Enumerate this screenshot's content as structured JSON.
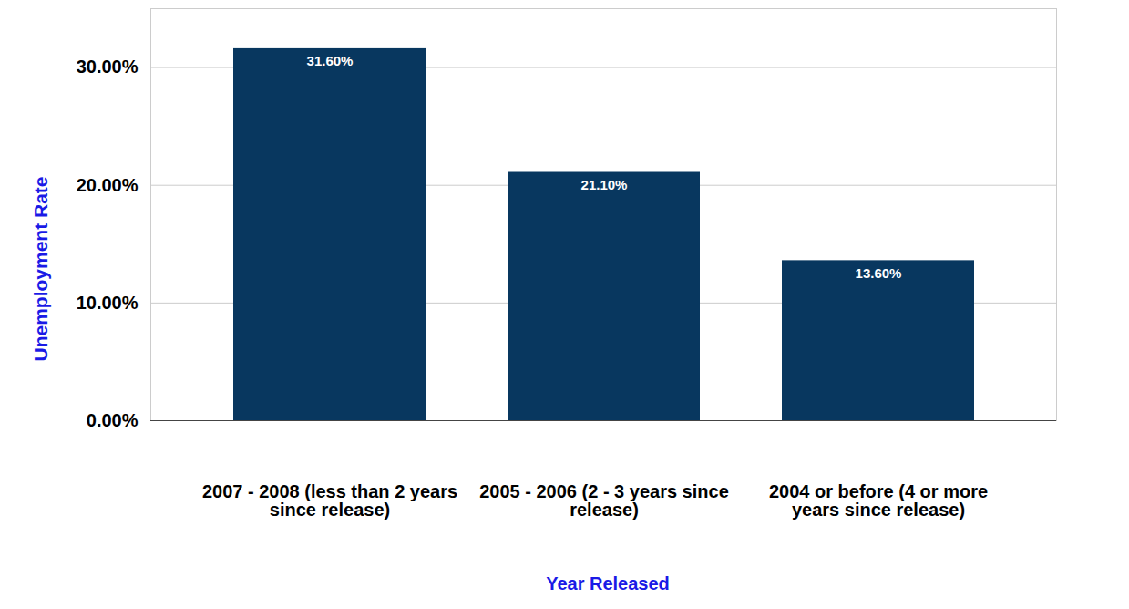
{
  "chart_data": {
    "type": "bar",
    "x_label": "Year Released",
    "y_label": "Unemployment Rate",
    "categories": [
      "2007 - 2008 (less than 2 years since release)",
      "2005 - 2006 (2 - 3 years since release)",
      "2004 or before (4 or more years since release)"
    ],
    "values": [
      31.6,
      21.1,
      13.6
    ],
    "value_labels": [
      "31.60%",
      "21.10%",
      "13.60%"
    ],
    "color": "#08375f",
    "ylim": [
      0,
      35
    ],
    "yticks": [
      {
        "value": 0,
        "label": "0.00%"
      },
      {
        "value": 10,
        "label": "10.00%"
      },
      {
        "value": 20,
        "label": "20.00%"
      },
      {
        "value": 30,
        "label": "30.00%"
      }
    ],
    "grid": true,
    "data_labels": true
  }
}
